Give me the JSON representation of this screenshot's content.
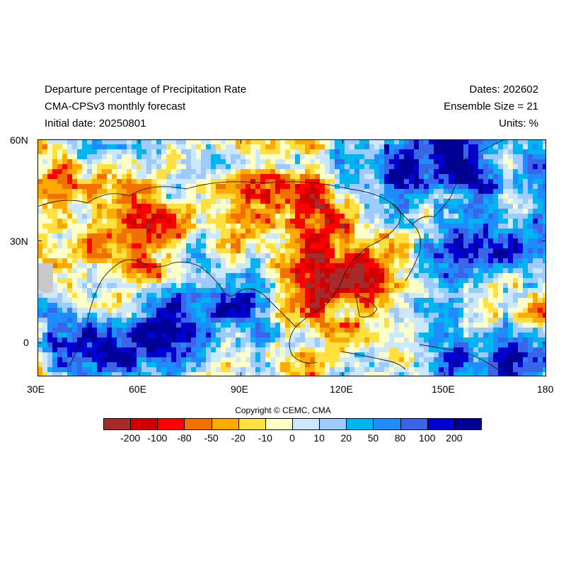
{
  "header": {
    "title": "Departure percentage of Precipitation Rate",
    "subtitle": "CMA-CPSv3 monthly forecast",
    "initial_date": "Initial date: 20250801",
    "dates": "Dates: 202602",
    "ensemble": "Ensemble Size = 21",
    "units": "Units: %"
  },
  "map": {
    "lon_range": [
      30,
      180
    ],
    "lat_range": [
      -10,
      60
    ],
    "x_ticks": [
      "30E",
      "60E",
      "90E",
      "120E",
      "150E",
      "180"
    ],
    "y_ticks": [
      "60N",
      "30N",
      "0"
    ]
  },
  "colorbar": {
    "labels": [
      "-200",
      "-100",
      "-80",
      "-50",
      "-20",
      "-10",
      "0",
      "10",
      "20",
      "50",
      "80",
      "100",
      "200"
    ],
    "colors": [
      "#a52a2a",
      "#d00000",
      "#ff0000",
      "#f07000",
      "#ffaa00",
      "#ffe040",
      "#ffffc8",
      "#cce8ff",
      "#9dcbff",
      "#00b4f0",
      "#1e8cff",
      "#3c64e6",
      "#0000d2",
      "#000096"
    ]
  },
  "copyright": "Copyright © CEMC, CMA"
}
